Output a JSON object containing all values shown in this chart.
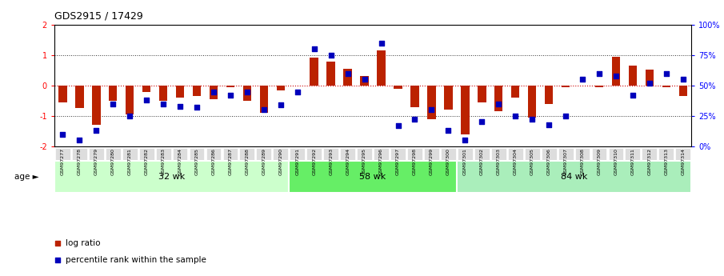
{
  "title": "GDS2915 / 17429",
  "samples": [
    "GSM97277",
    "GSM97278",
    "GSM97279",
    "GSM97280",
    "GSM97281",
    "GSM97282",
    "GSM97283",
    "GSM97284",
    "GSM97285",
    "GSM97286",
    "GSM97287",
    "GSM97288",
    "GSM97289",
    "GSM97290",
    "GSM97291",
    "GSM97292",
    "GSM97293",
    "GSM97294",
    "GSM97295",
    "GSM97296",
    "GSM97297",
    "GSM97298",
    "GSM97299",
    "GSM97300",
    "GSM97301",
    "GSM97302",
    "GSM97303",
    "GSM97304",
    "GSM97305",
    "GSM97306",
    "GSM97307",
    "GSM97308",
    "GSM97309",
    "GSM97310",
    "GSM97311",
    "GSM97312",
    "GSM97313",
    "GSM97314"
  ],
  "log_ratio": [
    -0.55,
    -0.75,
    -1.3,
    -0.5,
    -0.95,
    -0.2,
    -0.5,
    -0.4,
    -0.35,
    -0.45,
    -0.05,
    -0.5,
    -0.9,
    -0.15,
    0.0,
    0.92,
    0.78,
    0.55,
    0.32,
    1.15,
    -0.1,
    -0.72,
    -1.1,
    -0.78,
    -1.6,
    -0.55,
    -0.85,
    -0.4,
    -1.05,
    -0.6,
    -0.05,
    0.0,
    -0.05,
    0.95,
    0.65,
    0.52,
    -0.05,
    -0.35
  ],
  "percentile_rank": [
    10,
    5,
    13,
    35,
    25,
    38,
    35,
    33,
    32,
    45,
    42,
    45,
    30,
    34,
    45,
    80,
    75,
    60,
    55,
    85,
    17,
    22,
    30,
    13,
    5,
    20,
    35,
    25,
    22,
    18,
    25,
    55,
    60,
    58,
    42,
    52,
    60,
    55
  ],
  "groups": [
    {
      "label": "32 wk",
      "start": 0,
      "end": 14,
      "color": "#ccffcc"
    },
    {
      "label": "58 wk",
      "start": 14,
      "end": 24,
      "color": "#66ee66"
    },
    {
      "label": "84 wk",
      "start": 24,
      "end": 38,
      "color": "#aaeebb"
    }
  ],
  "bar_color": "#bb2200",
  "dot_color": "#0000bb",
  "ylim": [
    -2,
    2
  ],
  "hline_zero_color": "#cc0000",
  "hline_color": "#333333",
  "age_label": "age",
  "legend_bar_label": "log ratio",
  "legend_dot_label": "percentile rank within the sample",
  "label_bg_color": "#dddddd",
  "right_ytick_labels": [
    "0%",
    "25%",
    "50%",
    "75%",
    "100%"
  ],
  "left_ytick_labels": [
    "-2",
    "-1",
    "0",
    "1",
    "2"
  ]
}
